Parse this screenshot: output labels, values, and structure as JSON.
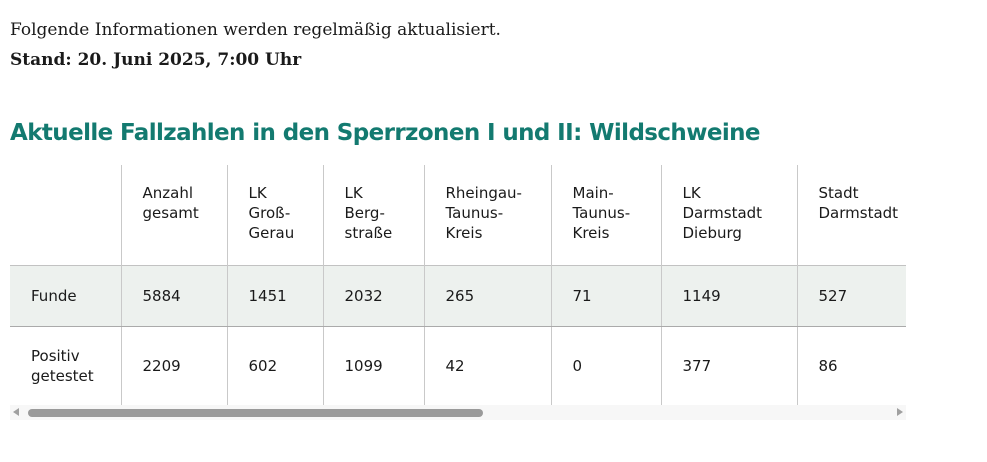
{
  "intro": {
    "text": "Folgende Informationen werden regelmäßig aktualisiert.",
    "stand": "Stand: 20. Juni 2025, 7:00 Uhr"
  },
  "title": "Aktuelle Fallzahlen in den Sperrzonen I und II: Wildschweine",
  "accent_color": "#137a70",
  "table": {
    "headers": [
      "",
      "Anzahl\ngesamt",
      "LK\nGroß-\nGerau",
      "LK\nBerg-\nstraße",
      "Rheingau-\nTaunus-\nKreis",
      "Main-\nTaunus-\nKreis",
      "LK\nDarmstadt\nDieburg",
      "Stadt\nDarmstadt"
    ],
    "rows": [
      [
        "Funde",
        "5884",
        "1451",
        "2032",
        "265",
        "71",
        "1149",
        "527"
      ],
      [
        "Positiv\ngetestet",
        "2209",
        "602",
        "1099",
        "42",
        "0",
        "377",
        "86"
      ]
    ]
  },
  "scrollbar": {
    "left_icon": "arrow-left-icon",
    "right_icon": "arrow-right-icon"
  }
}
